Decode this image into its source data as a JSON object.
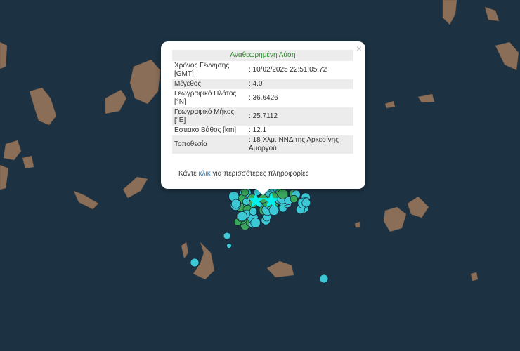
{
  "map": {
    "ocean_color": "#1c3242",
    "island_color": "#8a6e58",
    "marker_cyan": "#3cc8d4",
    "marker_green": "#3aa85a",
    "star_color": "#00f0f0"
  },
  "popup": {
    "title": "Αναθεωρημένη Λύση",
    "rows": [
      {
        "label": "Χρόνος Γέννησης [GMT]",
        "value": ": 10/02/2025 22:51:05.72"
      },
      {
        "label": "Μέγεθος",
        "value": ": 4.0"
      },
      {
        "label": "Γεωγραφικό Πλάτος [°N]",
        "value": ": 36.6426"
      },
      {
        "label": "Γεωγραφικό Μήκος [°E]",
        "value": ": 25.7112"
      },
      {
        "label": "Εστιακό Βάθος [km]",
        "value": ": 12.1"
      },
      {
        "label": "Τοποθεσία",
        "value": ": 18 Χλμ. ΝΝΔ της Αρκεσίνης Αμοργού"
      }
    ],
    "more_prefix": "Κάντε",
    "more_link": "κλικ",
    "more_suffix": "για περισσότερες πληροφορίες",
    "close_icon": "×"
  }
}
